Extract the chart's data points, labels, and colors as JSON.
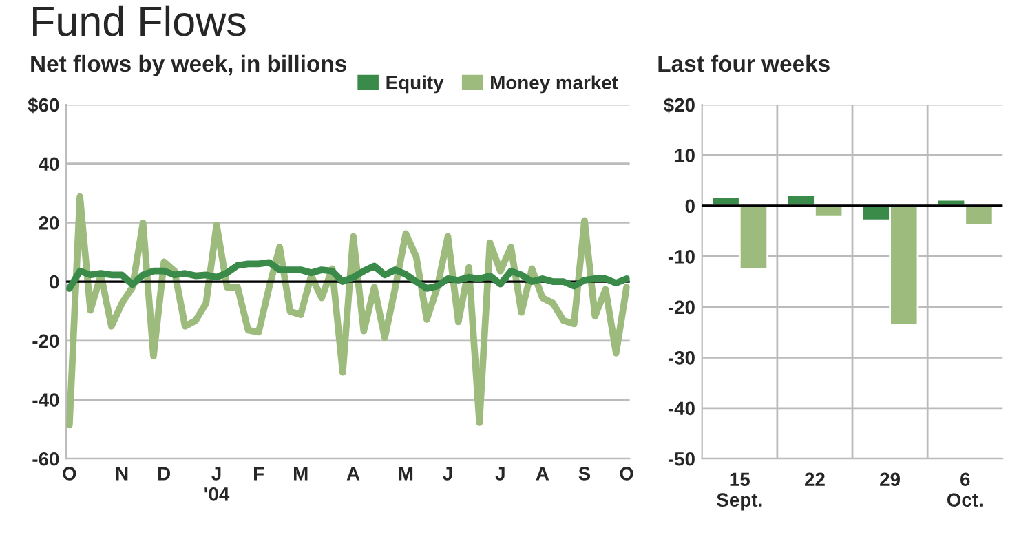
{
  "chart_data": [
    {
      "type": "line",
      "title": "Fund Flows",
      "subtitle": "Net flows by week, in billions",
      "categories": [
        "O",
        null,
        null,
        null,
        null,
        "N",
        null,
        null,
        null,
        "D",
        null,
        null,
        null,
        null,
        "J\n'04",
        null,
        null,
        null,
        "F",
        null,
        null,
        null,
        "M",
        null,
        null,
        null,
        null,
        "A",
        null,
        null,
        null,
        null,
        "M",
        null,
        null,
        null,
        "J",
        null,
        null,
        null,
        null,
        "J",
        null,
        null,
        null,
        "A",
        null,
        null,
        null,
        "S",
        null,
        null,
        null,
        "O"
      ],
      "series": [
        {
          "name": "Equity",
          "color": "#3a8a4a",
          "values": [
            -2.3,
            3.6,
            2.3,
            2.8,
            2.3,
            2.3,
            -1.0,
            2.3,
            3.6,
            3.6,
            2.3,
            2.8,
            2.0,
            2.3,
            1.5,
            3.0,
            5.5,
            6.0,
            6.0,
            6.5,
            4.0,
            4.0,
            4.0,
            3.0,
            4.0,
            3.6,
            0.0,
            1.5,
            3.6,
            5.3,
            2.3,
            4.0,
            2.5,
            0.0,
            -2.3,
            -1.5,
            1.0,
            0.5,
            1.5,
            1.0,
            2.0,
            -0.8,
            3.6,
            2.3,
            0.0,
            1.0,
            0.0,
            0.0,
            -1.5,
            0.5,
            1.0,
            1.0,
            -0.5,
            1.0
          ]
        },
        {
          "name": "Money market",
          "color": "#9dbb7c",
          "values": [
            -48.6,
            28.8,
            -9.7,
            2.3,
            -15.1,
            -7.3,
            -1.9,
            19.9,
            -25.2,
            6.7,
            3.6,
            -15.1,
            -13.2,
            -7.3,
            19.2,
            -1.9,
            -1.9,
            -16.4,
            -17.1,
            -1.9,
            11.7,
            -10.1,
            -11.2,
            2.0,
            -5.5,
            4.4,
            -30.7,
            15.3,
            -16.7,
            -1.9,
            -19.0,
            -1.9,
            16.3,
            8.3,
            -12.8,
            -1.9,
            15.3,
            -13.6,
            4.8,
            -47.8,
            13.2,
            3.6,
            11.7,
            -10.4,
            4.4,
            -5.5,
            -7.3,
            -13.2,
            -14.3,
            20.7,
            -11.7,
            -2.6,
            -24.2,
            -1.9
          ]
        }
      ],
      "ylim": [
        -60,
        60
      ],
      "yticks": [
        -60,
        -40,
        -20,
        0,
        20,
        40,
        {
          "value": 60,
          "label": "$60"
        }
      ],
      "grid": "y",
      "legend": "top right",
      "ref_lines": [
        {
          "axis": "y",
          "value": 0,
          "color": "#000000"
        }
      ]
    },
    {
      "type": "bar",
      "title": "Last four weeks",
      "categories": [
        "15\nSept.",
        "22",
        "29",
        "6\nOct."
      ],
      "series": [
        {
          "color": "#3a8a4a",
          "values": [
            1.7,
            2.1,
            -2.9,
            1.2
          ]
        },
        {
          "color": "#9dbb7c",
          "values": [
            -12.6,
            -2.2,
            -23.6,
            -3.8
          ]
        }
      ],
      "ylim": [
        -50,
        20
      ],
      "yticks": [
        -50,
        -40,
        -30,
        -20,
        -10,
        0,
        10,
        {
          "value": 20,
          "label": "$20"
        }
      ],
      "grid": true,
      "ref_lines": [
        {
          "axis": "y",
          "value": 0,
          "color": "#000000"
        }
      ]
    }
  ]
}
